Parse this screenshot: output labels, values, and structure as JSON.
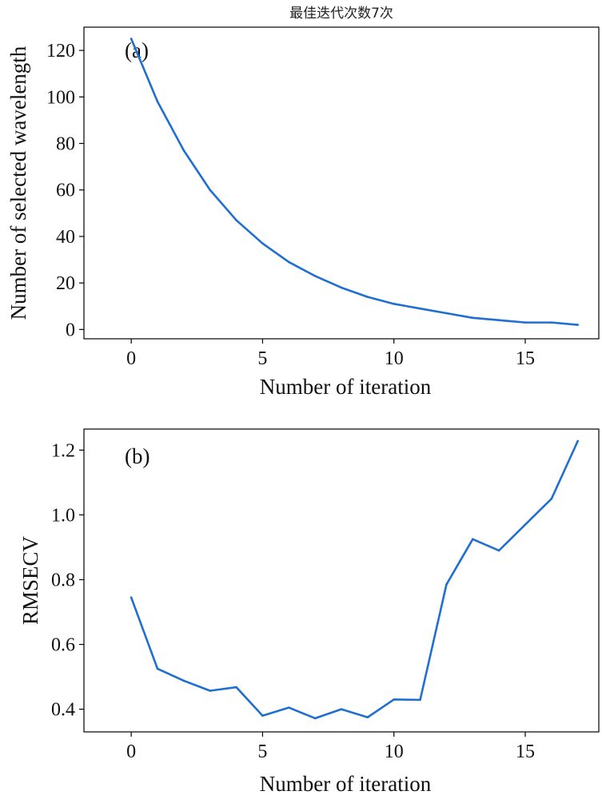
{
  "figure_title": "最佳迭代次数7次",
  "chart_data": [
    {
      "type": "line",
      "panel_label": "(a)",
      "title": "最佳迭代次数7次",
      "xlabel": "Number of iteration",
      "ylabel": "Number of selected wavelength",
      "xlim": [
        -1.8,
        17.8
      ],
      "ylim": [
        -4,
        130
      ],
      "xticks": [
        0,
        5,
        10,
        15
      ],
      "yticks": [
        0,
        20,
        40,
        60,
        80,
        100,
        120
      ],
      "grid": false,
      "color": "#1f6fd1",
      "x": [
        0,
        1,
        2,
        3,
        4,
        5,
        6,
        7,
        8,
        9,
        10,
        11,
        12,
        13,
        14,
        15,
        16,
        17
      ],
      "y": [
        125,
        98,
        77,
        60,
        47,
        37,
        29,
        23,
        18,
        14,
        11,
        9,
        7,
        5,
        4,
        3,
        3,
        2
      ]
    },
    {
      "type": "line",
      "panel_label": "(b)",
      "title": "",
      "xlabel": "Number of iteration",
      "ylabel": "RMSECV",
      "xlim": [
        -1.8,
        17.8
      ],
      "ylim": [
        0.33,
        1.265
      ],
      "xticks": [
        0,
        5,
        10,
        15
      ],
      "yticks": [
        0.4,
        0.6,
        0.8,
        1.0,
        1.2
      ],
      "ytick_labels": [
        "0.4",
        "0.6",
        "0.8",
        "1.0",
        "1.2"
      ],
      "grid": false,
      "color": "#1f6fd1",
      "x": [
        0,
        1,
        2,
        3,
        4,
        5,
        6,
        7,
        8,
        9,
        10,
        11,
        12,
        13,
        14,
        15,
        16,
        17
      ],
      "y": [
        0.745,
        0.525,
        0.488,
        0.457,
        0.468,
        0.38,
        0.405,
        0.372,
        0.4,
        0.375,
        0.43,
        0.429,
        0.785,
        0.925,
        0.89,
        0.97,
        1.05,
        1.228
      ]
    }
  ]
}
